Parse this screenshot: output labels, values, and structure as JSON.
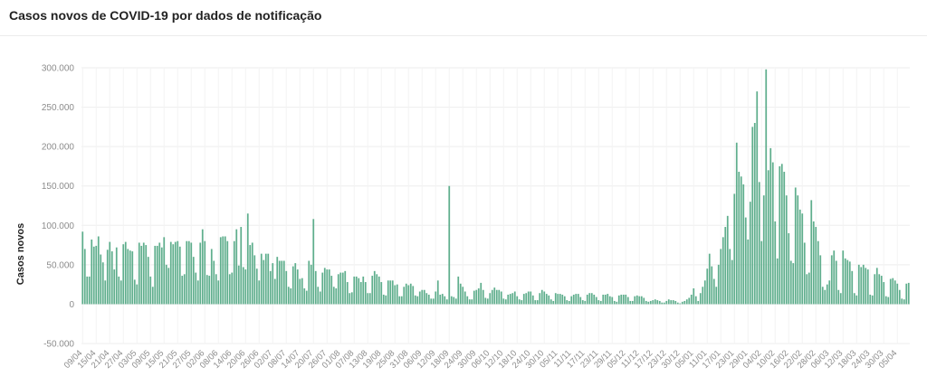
{
  "chart_data": {
    "type": "bar",
    "title": "Casos novos de COVID-19 por dados de notificação",
    "ylabel": "Casos novos",
    "xlabel": "",
    "ylim": [
      -50000,
      300000
    ],
    "yticks": [
      -50000,
      0,
      50000,
      100000,
      150000,
      200000,
      250000,
      300000
    ],
    "ytick_labels": [
      "-50.000",
      "0",
      "50.000",
      "100.000",
      "150.000",
      "200.000",
      "250.000",
      "300.000"
    ],
    "start_date": "2020-04-09",
    "xtick_labels": [
      "09/04",
      "15/04",
      "21/04",
      "27/04",
      "03/05",
      "09/05",
      "15/05",
      "21/05",
      "27/05",
      "02/06",
      "08/06",
      "14/06",
      "20/06",
      "26/06",
      "02/07",
      "08/07",
      "14/07",
      "20/07",
      "26/07",
      "01/08",
      "07/08",
      "13/08",
      "19/08",
      "25/08",
      "31/08",
      "06/09",
      "12/09",
      "18/09",
      "24/09",
      "30/09",
      "06/10",
      "12/10",
      "18/10",
      "24/10",
      "30/10",
      "05/11",
      "11/11",
      "17/11",
      "23/11",
      "29/11",
      "05/12",
      "11/12",
      "17/12",
      "23/12",
      "30/12",
      "05/01",
      "11/01",
      "17/01",
      "23/01",
      "29/01",
      "04/02",
      "10/02",
      "16/02",
      "22/02",
      "28/02",
      "06/03",
      "12/03",
      "18/03",
      "24/03",
      "30/03",
      "05/04"
    ],
    "grid": true,
    "legend": "none",
    "bar_color": "#5fae8d",
    "values": [
      92000,
      70000,
      35000,
      35000,
      82000,
      73000,
      74000,
      86000,
      63000,
      53000,
      30000,
      69000,
      79000,
      67000,
      44000,
      72000,
      35000,
      30000,
      76000,
      79000,
      70000,
      68000,
      67000,
      31000,
      25000,
      78000,
      74000,
      78000,
      75000,
      60000,
      35000,
      22000,
      74000,
      74000,
      78000,
      72000,
      85000,
      50000,
      46000,
      79000,
      76000,
      79000,
      80000,
      73000,
      36000,
      38000,
      80000,
      80000,
      78000,
      60000,
      40000,
      30000,
      78000,
      95000,
      80000,
      37000,
      36000,
      70000,
      55000,
      38000,
      30000,
      85000,
      86000,
      86000,
      80000,
      38000,
      40000,
      80000,
      95000,
      49000,
      98000,
      47000,
      44000,
      115000,
      75000,
      78000,
      62000,
      45000,
      30000,
      64000,
      56000,
      64000,
      64000,
      42000,
      52000,
      32000,
      60000,
      55000,
      55000,
      55000,
      42000,
      22000,
      20000,
      48000,
      52000,
      44000,
      32000,
      33000,
      20000,
      17000,
      55000,
      50000,
      108000,
      42000,
      22000,
      16000,
      40000,
      46000,
      44000,
      44000,
      36000,
      22000,
      20000,
      38000,
      40000,
      40000,
      42000,
      28000,
      14000,
      15000,
      35000,
      35000,
      33000,
      28000,
      35000,
      28000,
      14000,
      14000,
      36000,
      42000,
      38000,
      35000,
      28000,
      12000,
      11000,
      30000,
      30000,
      30000,
      24000,
      25000,
      10000,
      10000,
      22000,
      26000,
      24000,
      26000,
      23000,
      11000,
      10000,
      16000,
      18000,
      18000,
      14000,
      12000,
      7000,
      7000,
      16000,
      30000,
      12000,
      13000,
      10000,
      6000,
      150000,
      10000,
      9000,
      7000,
      35000,
      26000,
      22000,
      16000,
      10000,
      6000,
      6000,
      17000,
      18000,
      20000,
      27000,
      18000,
      8000,
      7000,
      14000,
      18000,
      21000,
      18000,
      18000,
      16000,
      7000,
      6000,
      12000,
      13000,
      14000,
      16000,
      10000,
      6000,
      5000,
      13000,
      14000,
      16000,
      16000,
      11000,
      5000,
      5000,
      14000,
      18000,
      16000,
      13000,
      11000,
      6000,
      4000,
      14000,
      13000,
      13000,
      12000,
      10000,
      5000,
      4000,
      10000,
      12000,
      13000,
      13000,
      9000,
      5000,
      4000,
      12000,
      14000,
      14000,
      12000,
      9000,
      5000,
      4000,
      12000,
      12000,
      13000,
      10000,
      9000,
      4000,
      3000,
      11000,
      12000,
      12000,
      12000,
      9000,
      4000,
      4000,
      10000,
      11000,
      10000,
      10000,
      8000,
      4000,
      3000,
      4000,
      5000,
      6000,
      5000,
      4000,
      2000,
      2000,
      4000,
      6000,
      5000,
      5000,
      4000,
      2000,
      1000,
      3000,
      4000,
      6000,
      8000,
      12000,
      20000,
      10000,
      4000,
      14000,
      22000,
      30000,
      45000,
      64000,
      48000,
      32000,
      22000,
      50000,
      70000,
      85000,
      98000,
      112000,
      70000,
      56000,
      140000,
      205000,
      168000,
      162000,
      152000,
      110000,
      82000,
      130000,
      225000,
      230000,
      270000,
      155000,
      80000,
      138000,
      298000,
      170000,
      198000,
      180000,
      105000,
      58000,
      175000,
      178000,
      168000,
      138000,
      90000,
      55000,
      52000,
      148000,
      138000,
      120000,
      115000,
      78000,
      38000,
      40000,
      132000,
      105000,
      98000,
      80000,
      62000,
      22000,
      18000,
      25000,
      30000,
      62000,
      68000,
      55000,
      18000,
      14000,
      68000,
      58000,
      56000,
      54000,
      42000,
      14000,
      11000,
      50000,
      47000,
      50000,
      46000,
      44000,
      12000,
      11000,
      38000,
      46000,
      38000,
      36000,
      28000,
      10000,
      9000,
      32000,
      33000,
      30000,
      26000,
      18000,
      7000,
      6000,
      26000,
      27000
    ]
  }
}
